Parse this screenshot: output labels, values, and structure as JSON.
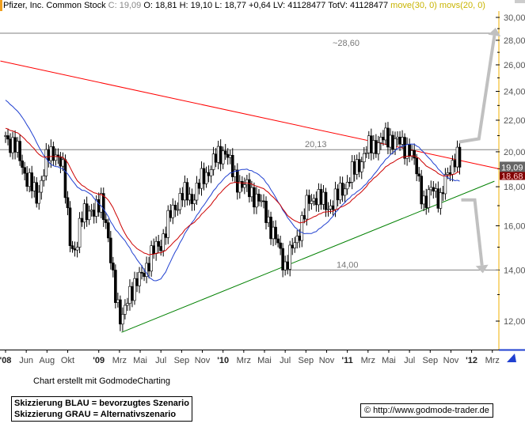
{
  "header": {
    "name": "Pfizer, Inc. Common Stock",
    "close": "C: 19,09",
    "ohlc": "O: 18,81 H: 19,10 L: 18,77 +0,64 LV: 41128477 TotV: 41128477",
    "indicators": "move(30, 0) movs(20, 0)"
  },
  "footer": {
    "credit": "Chart erstellt mit GodmodeCharting",
    "legend_blue": "Skizzierung BLAU = bevorzugtes Szenario",
    "legend_gray": "Skizzierung GRAU = Alternativszenario",
    "copyright": "© http://www.godmode-trader.de"
  },
  "chart_data": {
    "type": "candlestick",
    "title": "Pfizer, Inc. Common Stock",
    "y_scale": "log",
    "ylim": [
      12,
      30
    ],
    "y_ticks": [
      "12,00",
      "14,00",
      "16,00",
      "18,00",
      "20,00",
      "22,00",
      "24,00",
      "26,00",
      "28,00",
      "30,00"
    ],
    "y_tick_values": [
      12,
      14,
      16,
      18,
      20,
      22,
      24,
      26,
      28,
      30
    ],
    "x_ticks": [
      {
        "label": "'08",
        "m": 0
      },
      {
        "label": "Jun",
        "m": 2
      },
      {
        "label": "Aug",
        "m": 4
      },
      {
        "label": "Okt",
        "m": 6
      },
      {
        "label": "'09",
        "m": 9
      },
      {
        "label": "Mrz",
        "m": 11
      },
      {
        "label": "Mai",
        "m": 13
      },
      {
        "label": "Jul",
        "m": 15
      },
      {
        "label": "Sep",
        "m": 17
      },
      {
        "label": "Nov",
        "m": 19
      },
      {
        "label": "'10",
        "m": 21
      },
      {
        "label": "Mrz",
        "m": 23
      },
      {
        "label": "Mai",
        "m": 25
      },
      {
        "label": "Jul",
        "m": 27
      },
      {
        "label": "Sep",
        "m": 29
      },
      {
        "label": "Nov",
        "m": 31
      },
      {
        "label": "'11",
        "m": 33
      },
      {
        "label": "Mrz",
        "m": 35
      },
      {
        "label": "Mai",
        "m": 37
      },
      {
        "label": "Jul",
        "m": 39
      },
      {
        "label": "Sep",
        "m": 41
      },
      {
        "label": "Nov",
        "m": 43
      },
      {
        "label": "'12",
        "m": 45
      },
      {
        "label": "Mrz",
        "m": 47
      }
    ],
    "x_unit": "months since Apr 2008",
    "price_path": [
      [
        0,
        21
      ],
      [
        1,
        20.2
      ],
      [
        2,
        18.6
      ],
      [
        3,
        17.4
      ],
      [
        4,
        19.6
      ],
      [
        4.8,
        20.1
      ],
      [
        5.5,
        19
      ],
      [
        6.3,
        15.2
      ],
      [
        6.8,
        14.6
      ],
      [
        7.5,
        17
      ],
      [
        8.5,
        16.4
      ],
      [
        9.2,
        17.6
      ],
      [
        10.2,
        14.2
      ],
      [
        11.2,
        11.8
      ],
      [
        12,
        13.2
      ],
      [
        13,
        13.6
      ],
      [
        14,
        14.6
      ],
      [
        15,
        15.2
      ],
      [
        16,
        16.6
      ],
      [
        17,
        17.6
      ],
      [
        18,
        17.4
      ],
      [
        19,
        18.4
      ],
      [
        20,
        19.3
      ],
      [
        21.2,
        20.2
      ],
      [
        22,
        18.6
      ],
      [
        23,
        18
      ],
      [
        24,
        17.6
      ],
      [
        25,
        16.8
      ],
      [
        26,
        15.4
      ],
      [
        27,
        14.2
      ],
      [
        28,
        15.2
      ],
      [
        29,
        16.9
      ],
      [
        30,
        17.6
      ],
      [
        31,
        16.9
      ],
      [
        32,
        17.4
      ],
      [
        33,
        18.3
      ],
      [
        34,
        19.2
      ],
      [
        35,
        20.2
      ],
      [
        36,
        20.6
      ],
      [
        37,
        20.9
      ],
      [
        38,
        20.5
      ],
      [
        39,
        20.2
      ],
      [
        39.8,
        18.6
      ],
      [
        40.5,
        17
      ],
      [
        41.3,
        18
      ],
      [
        42,
        17.3
      ],
      [
        42.8,
        18.9
      ],
      [
        43.5,
        19.9
      ],
      [
        43.9,
        19.09
      ]
    ],
    "last_close": "19,09",
    "ma_value": "18,68",
    "trendlines": [
      {
        "name": "resistance",
        "color": "#ff0000",
        "from": [
          -0.5,
          26.3
        ],
        "to": [
          47.6,
          19.0
        ]
      },
      {
        "name": "support",
        "color": "#008000",
        "from": [
          11.2,
          11.6
        ],
        "to": [
          47.2,
          18.3
        ]
      }
    ],
    "levels": [
      {
        "label": "~28,60",
        "value": 28.6,
        "from_m": -1
      },
      {
        "label": "20,13",
        "value": 20.13,
        "from_m": -1
      },
      {
        "label": "14,00",
        "value": 14.0,
        "from_m": 26.6
      }
    ],
    "scenarios": [
      {
        "name": "up",
        "color": "#c0c0c0",
        "path": [
          [
            43.8,
            20.6
          ],
          [
            45.7,
            20.8
          ],
          [
            47.2,
            28.4
          ]
        ]
      },
      {
        "name": "down",
        "color": "#c0c0c0",
        "path": [
          [
            44,
            17.3
          ],
          [
            45.3,
            17.3
          ],
          [
            46,
            14.2
          ]
        ]
      }
    ],
    "colors": {
      "ema30": "#cc0000",
      "sma20": "#2040d0",
      "axis": "#f0b000"
    }
  }
}
